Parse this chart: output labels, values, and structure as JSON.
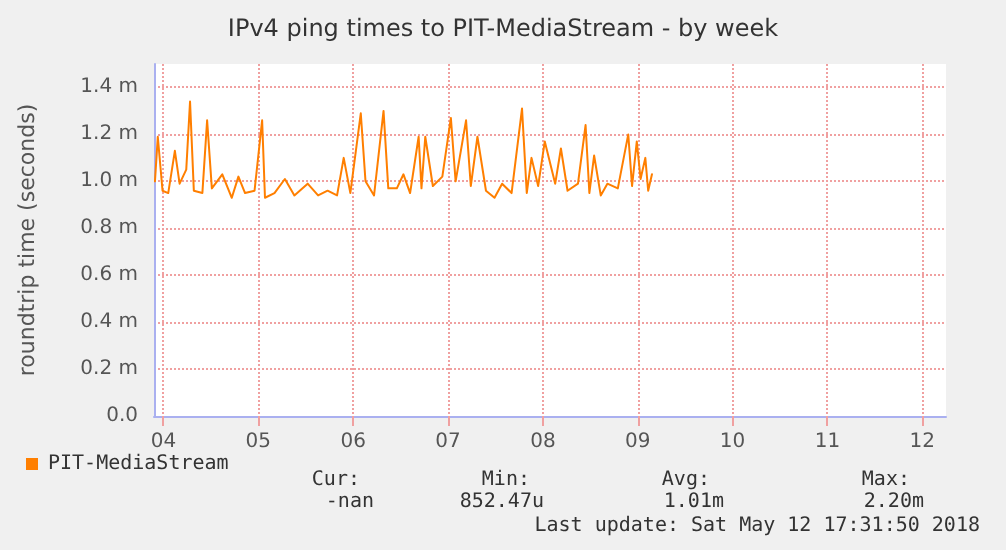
{
  "chart_data": {
    "type": "line",
    "title": "IPv4 ping times to PIT-MediaStream - by week",
    "ylabel": "roundtrip time (seconds)",
    "xlim": [
      3.9,
      12.25
    ],
    "xticks": [
      {
        "value": 4,
        "label": "04"
      },
      {
        "value": 5,
        "label": "05"
      },
      {
        "value": 6,
        "label": "06"
      },
      {
        "value": 7,
        "label": "07"
      },
      {
        "value": 8,
        "label": "08"
      },
      {
        "value": 9,
        "label": "09"
      },
      {
        "value": 10,
        "label": "10"
      },
      {
        "value": 11,
        "label": "11"
      },
      {
        "value": 12,
        "label": "12"
      }
    ],
    "ylim": [
      0,
      1.5
    ],
    "yticks": [
      {
        "value": 0,
        "label": "0.0"
      },
      {
        "value": 0.2,
        "label": "0.2 m"
      },
      {
        "value": 0.4,
        "label": "0.4 m"
      },
      {
        "value": 0.6,
        "label": "0.6 m"
      },
      {
        "value": 0.8,
        "label": "0.8 m"
      },
      {
        "value": 1.0,
        "label": "1.0 m"
      },
      {
        "value": 1.2,
        "label": "1.2 m"
      },
      {
        "value": 1.4,
        "label": "1.4 m"
      }
    ],
    "grid": true,
    "legend": "bottom left",
    "marker": "none",
    "line_style": "solid",
    "series": [
      {
        "name": "PIT-MediaStream",
        "color": "#ff7f00",
        "x": [
          3.91,
          3.94,
          3.99,
          4.05,
          4.12,
          4.17,
          4.24,
          4.28,
          4.32,
          4.41,
          4.46,
          4.51,
          4.62,
          4.72,
          4.79,
          4.86,
          4.96,
          5.04,
          5.07,
          5.17,
          5.28,
          5.38,
          5.52,
          5.63,
          5.73,
          5.83,
          5.9,
          5.97,
          6.08,
          6.13,
          6.22,
          6.32,
          6.37,
          6.46,
          6.53,
          6.6,
          6.69,
          6.72,
          6.76,
          6.84,
          6.94,
          7.03,
          7.08,
          7.19,
          7.24,
          7.31,
          7.4,
          7.49,
          7.57,
          7.67,
          7.78,
          7.83,
          7.88,
          7.95,
          8.02,
          8.13,
          8.19,
          8.26,
          8.37,
          8.45,
          8.49,
          8.54,
          8.61,
          8.68,
          8.79,
          8.9,
          8.94,
          8.99,
          9.03,
          9.08,
          9.11,
          9.15
        ],
        "values": [
          1.0,
          1.19,
          0.96,
          0.95,
          1.13,
          0.99,
          1.05,
          1.34,
          0.96,
          0.95,
          1.26,
          0.97,
          1.03,
          0.93,
          1.02,
          0.95,
          0.96,
          1.26,
          0.93,
          0.95,
          1.01,
          0.94,
          0.99,
          0.94,
          0.96,
          0.94,
          1.1,
          0.95,
          1.29,
          1.0,
          0.94,
          1.3,
          0.97,
          0.97,
          1.03,
          0.95,
          1.19,
          0.97,
          1.19,
          0.98,
          1.02,
          1.27,
          1.0,
          1.26,
          0.98,
          1.19,
          0.96,
          0.93,
          0.99,
          0.95,
          1.31,
          0.95,
          1.1,
          0.98,
          1.17,
          0.99,
          1.14,
          0.96,
          0.99,
          1.24,
          0.95,
          1.11,
          0.94,
          0.99,
          0.97,
          1.2,
          0.98,
          1.17,
          1.01,
          1.1,
          0.96,
          1.03
        ]
      }
    ],
    "annotations": [
      "Cur:",
      "Min:",
      "Avg:",
      "Max:",
      "-nan",
      "852.47u",
      "1.01m",
      "2.20m",
      "Last update: Sat May 12 17:31:50 2018"
    ]
  }
}
